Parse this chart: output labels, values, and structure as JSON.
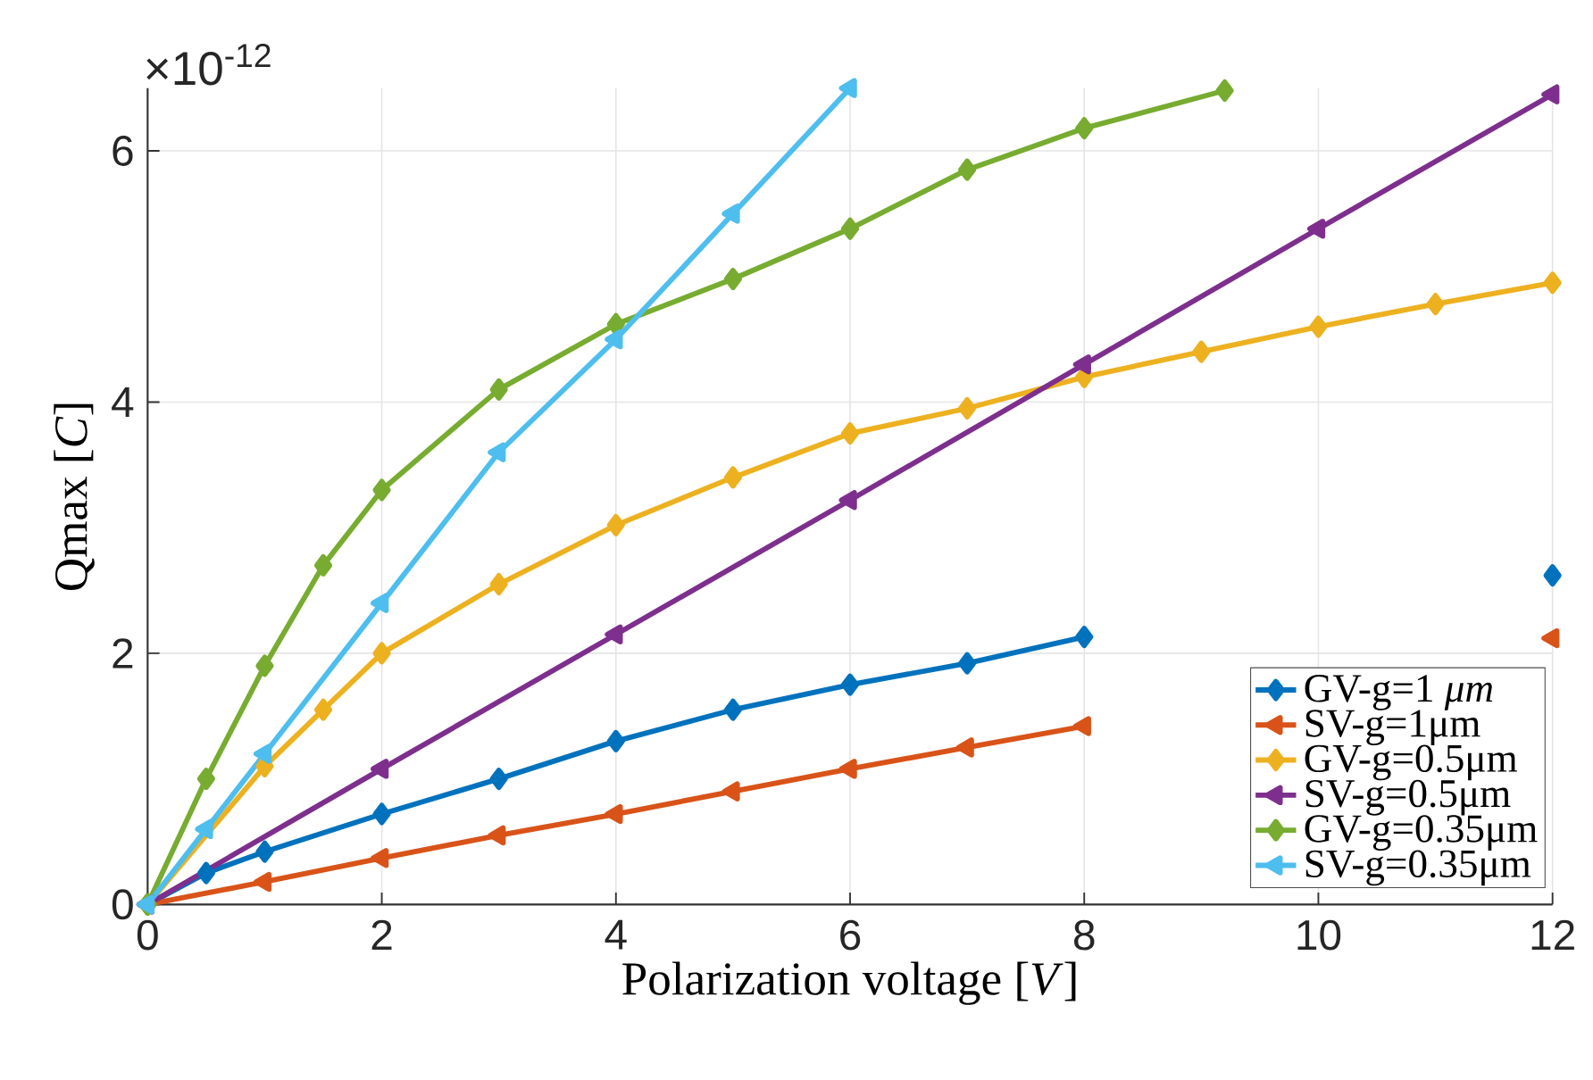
{
  "chart_data": {
    "type": "line",
    "xlabel": "Polarization voltage [*V*]",
    "ylabel": "Qmax [*C*]",
    "annotations": [
      "×10$^{-12}$"
    ],
    "xlim": [
      0,
      12
    ],
    "ylim": [
      0,
      6.5
    ],
    "xticks": [
      0,
      2,
      4,
      6,
      8,
      10,
      12
    ],
    "yticks": [
      0,
      2,
      4,
      6
    ],
    "grid": true,
    "legend": "bottom right",
    "series": [
      {
        "name": "GV-g=1 *μm*",
        "color": "#0072bd",
        "marker": "diamond",
        "x": [
          0,
          0.5,
          1,
          2,
          3,
          4,
          5,
          6,
          7,
          8,
          9,
          10,
          11,
          12
        ],
        "values": [
          0,
          0.25,
          0.42,
          0.72,
          1.0,
          1.3,
          1.55,
          1.75,
          1.92,
          2.13,
          null,
          null,
          null,
          2.62
        ]
      },
      {
        "name": "SV-g=1μm",
        "color": "#d95319",
        "marker": "triangle",
        "x": [
          0,
          1,
          2,
          3,
          4,
          5,
          6,
          7,
          8,
          9,
          10,
          11,
          12
        ],
        "values": [
          0,
          0.18,
          0.37,
          0.55,
          0.72,
          0.9,
          1.08,
          1.25,
          1.42,
          null,
          null,
          null,
          2.12
        ]
      },
      {
        "name": "GV-g=0.5μm",
        "color": "#edb120",
        "marker": "diamond",
        "x": [
          0,
          1,
          1.5,
          2,
          3,
          4,
          5,
          6,
          7,
          8,
          9,
          10,
          11,
          12
        ],
        "values": [
          0,
          1.1,
          1.55,
          2.0,
          2.55,
          3.02,
          3.4,
          3.75,
          3.95,
          4.2,
          4.4,
          4.6,
          4.78,
          4.95
        ]
      },
      {
        "name": "SV-g=0.5μm",
        "color": "#7e2f8e",
        "marker": "triangle",
        "x": [
          0,
          2,
          4,
          6,
          8,
          10,
          12
        ],
        "values": [
          0,
          1.08,
          2.15,
          3.22,
          4.3,
          5.38,
          6.45
        ]
      },
      {
        "name": "GV-g=0.35μm",
        "color": "#77ac30",
        "marker": "diamond",
        "x": [
          0,
          0.5,
          1,
          1.5,
          2,
          3,
          4,
          5,
          6,
          7,
          8,
          9.2
        ],
        "values": [
          0,
          1.0,
          1.9,
          2.7,
          3.3,
          4.1,
          4.62,
          4.98,
          5.38,
          5.85,
          6.18,
          6.48
        ]
      },
      {
        "name": "SV-g=0.35μm",
        "color": "#4dbeee",
        "marker": "triangle",
        "x": [
          0,
          0.5,
          1,
          2,
          3,
          4,
          5,
          6
        ],
        "values": [
          0,
          0.6,
          1.2,
          2.4,
          3.6,
          4.5,
          5.5,
          6.5
        ]
      }
    ]
  }
}
